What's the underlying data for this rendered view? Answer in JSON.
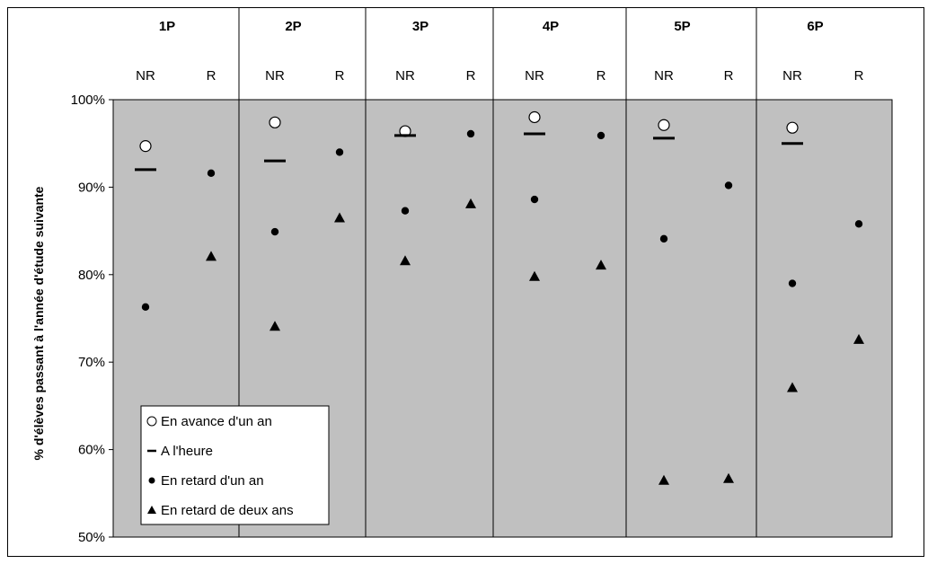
{
  "chart_data": {
    "type": "scatter",
    "title": "",
    "ylabel": "% d'élèves passant à l'année d'étude suivante",
    "ylim": [
      50,
      100
    ],
    "yticks": [
      "50%",
      "60%",
      "70%",
      "80%",
      "90%",
      "100%"
    ],
    "ytick_values": [
      50,
      60,
      70,
      80,
      90,
      100
    ],
    "grades": [
      "1P",
      "2P",
      "3P",
      "4P",
      "5P",
      "6P"
    ],
    "subcategories": [
      "NR",
      "R"
    ],
    "legend": {
      "placement": "bottom-left",
      "entries": [
        {
          "marker": "open-circle",
          "label": "En avance d'un an"
        },
        {
          "marker": "dash",
          "label": "A l'heure"
        },
        {
          "marker": "filled-circle",
          "label": "En retard d'un an"
        },
        {
          "marker": "triangle",
          "label": "En retard de deux ans"
        }
      ]
    },
    "background_color": "#c0c0c0",
    "series": [
      {
        "name": "En avance d'un an",
        "marker": "open-circle",
        "points": [
          {
            "grade": "1P",
            "sub": "NR",
            "y": 94.7
          },
          {
            "grade": "2P",
            "sub": "NR",
            "y": 97.4
          },
          {
            "grade": "3P",
            "sub": "NR",
            "y": 96.4
          },
          {
            "grade": "4P",
            "sub": "NR",
            "y": 98.0
          },
          {
            "grade": "5P",
            "sub": "NR",
            "y": 97.1
          },
          {
            "grade": "6P",
            "sub": "NR",
            "y": 96.8
          }
        ]
      },
      {
        "name": "A l'heure",
        "marker": "dash",
        "points": [
          {
            "grade": "1P",
            "sub": "NR",
            "y": 92.0
          },
          {
            "grade": "2P",
            "sub": "NR",
            "y": 93.0
          },
          {
            "grade": "3P",
            "sub": "NR",
            "y": 95.9
          },
          {
            "grade": "4P",
            "sub": "NR",
            "y": 96.1
          },
          {
            "grade": "5P",
            "sub": "NR",
            "y": 95.6
          },
          {
            "grade": "6P",
            "sub": "NR",
            "y": 95.0
          }
        ]
      },
      {
        "name": "En retard d'un an",
        "marker": "filled-circle",
        "points": [
          {
            "grade": "1P",
            "sub": "NR",
            "y": 76.3
          },
          {
            "grade": "1P",
            "sub": "R",
            "y": 91.6
          },
          {
            "grade": "2P",
            "sub": "NR",
            "y": 84.9
          },
          {
            "grade": "2P",
            "sub": "R",
            "y": 94.0
          },
          {
            "grade": "3P",
            "sub": "NR",
            "y": 87.3
          },
          {
            "grade": "3P",
            "sub": "R",
            "y": 96.1
          },
          {
            "grade": "4P",
            "sub": "NR",
            "y": 88.6
          },
          {
            "grade": "4P",
            "sub": "R",
            "y": 95.9
          },
          {
            "grade": "5P",
            "sub": "NR",
            "y": 84.1
          },
          {
            "grade": "5P",
            "sub": "R",
            "y": 90.2
          },
          {
            "grade": "6P",
            "sub": "NR",
            "y": 79.0
          },
          {
            "grade": "6P",
            "sub": "R",
            "y": 85.8
          }
        ]
      },
      {
        "name": "En retard de deux ans",
        "marker": "triangle",
        "points": [
          {
            "grade": "1P",
            "sub": "R",
            "y": 82.1
          },
          {
            "grade": "2P",
            "sub": "NR",
            "y": 74.1
          },
          {
            "grade": "2P",
            "sub": "R",
            "y": 86.5
          },
          {
            "grade": "3P",
            "sub": "NR",
            "y": 81.6
          },
          {
            "grade": "3P",
            "sub": "R",
            "y": 88.1
          },
          {
            "grade": "4P",
            "sub": "NR",
            "y": 79.8
          },
          {
            "grade": "4P",
            "sub": "R",
            "y": 81.1
          },
          {
            "grade": "5P",
            "sub": "NR",
            "y": 56.5
          },
          {
            "grade": "5P",
            "sub": "R",
            "y": 56.7
          },
          {
            "grade": "6P",
            "sub": "NR",
            "y": 67.1
          },
          {
            "grade": "6P",
            "sub": "R",
            "y": 72.6
          }
        ]
      }
    ]
  }
}
